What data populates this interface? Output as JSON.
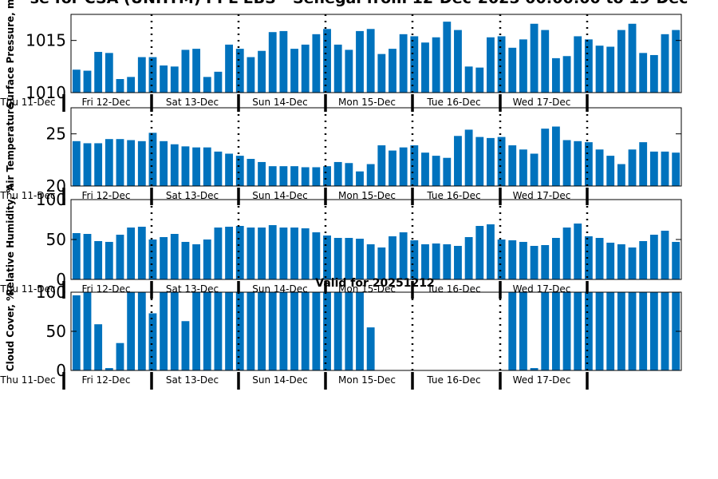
{
  "figure": {
    "title": "se for CSA (UNHTM) PPL EBS  - Senegal from 12-Dec-2025 00:00:00 to 19-Dec",
    "valid_label": "Valid for 20251212",
    "day_labels": [
      "Thu 11-Dec",
      "Fri 12-Dec",
      "Sat 13-Dec",
      "Sun 14-Dec",
      "Mon 15-Dec",
      "Tue 16-Dec",
      "Wed 17-Dec"
    ],
    "bar_color": "#0072BD"
  },
  "chart_data": [
    {
      "type": "bar",
      "ylabel": "Surface Pressure, m",
      "ylim": [
        1010,
        1017.5
      ],
      "yticks": [
        1010,
        1015
      ],
      "grid": false,
      "values": [
        1012.2,
        1012.1,
        1013.9,
        1013.8,
        1011.3,
        1011.5,
        1013.4,
        1013.4,
        1012.6,
        1012.5,
        1014.1,
        1014.2,
        1011.5,
        1012.0,
        1014.6,
        1014.2,
        1013.4,
        1014.0,
        1015.8,
        1015.9,
        1014.2,
        1014.6,
        1015.6,
        1016.1,
        1014.6,
        1014.1,
        1015.9,
        1016.1,
        1013.7,
        1014.2,
        1015.6,
        1015.4,
        1014.8,
        1015.3,
        1016.8,
        1016.0,
        1012.5,
        1012.4,
        1015.3,
        1015.4,
        1014.3,
        1015.1,
        1016.6,
        1016.0,
        1013.3,
        1013.5,
        1015.4,
        1015.1,
        1014.5,
        1014.4,
        1016.0,
        1016.6,
        1013.8,
        1013.6,
        1015.6,
        1016.0
      ]
    },
    {
      "type": "bar",
      "ylabel": "Air Temperature",
      "ylim": [
        20,
        27.5
      ],
      "yticks": [
        20,
        25
      ],
      "grid": false,
      "values": [
        24.3,
        24.1,
        24.1,
        24.5,
        24.5,
        24.4,
        24.3,
        25.1,
        24.3,
        24.0,
        23.8,
        23.7,
        23.7,
        23.3,
        23.1,
        22.9,
        22.6,
        22.3,
        21.9,
        21.9,
        21.9,
        21.8,
        21.8,
        21.9,
        22.3,
        22.2,
        21.4,
        22.1,
        23.9,
        23.4,
        23.7,
        23.9,
        23.2,
        22.9,
        22.7,
        24.8,
        25.4,
        24.7,
        24.6,
        24.7,
        23.9,
        23.5,
        23.1,
        25.5,
        25.7,
        24.4,
        24.3,
        24.2,
        23.5,
        22.9,
        22.1,
        23.5,
        24.2,
        23.3,
        23.3,
        23.2
      ]
    },
    {
      "type": "bar",
      "ylabel": "Relative Humidity, %",
      "ylim": [
        0,
        100
      ],
      "yticks": [
        0,
        50,
        100
      ],
      "grid": false,
      "values": [
        58,
        57,
        48,
        47,
        56,
        65,
        66,
        50,
        53,
        57,
        47,
        44,
        50,
        65,
        66,
        67,
        65,
        65,
        68,
        65,
        65,
        64,
        59,
        55,
        52,
        52,
        51,
        44,
        40,
        54,
        59,
        49,
        44,
        45,
        44,
        42,
        53,
        67,
        69,
        50,
        49,
        47,
        42,
        43,
        52,
        65,
        70,
        54,
        52,
        46,
        44,
        40,
        48,
        56,
        61,
        47
      ]
    },
    {
      "type": "bar",
      "ylabel": "Cloud Cover, %",
      "ylim": [
        0,
        100
      ],
      "yticks": [
        0,
        50,
        100
      ],
      "grid": false,
      "values": [
        96,
        100,
        59,
        3,
        35,
        100,
        100,
        73,
        100,
        100,
        63,
        100,
        100,
        100,
        100,
        100,
        100,
        100,
        100,
        100,
        100,
        100,
        100,
        100,
        100,
        100,
        100,
        55,
        0,
        0,
        0,
        0,
        0,
        0,
        0,
        0,
        0,
        0,
        0,
        0,
        100,
        100,
        3,
        100,
        100,
        100,
        100,
        100,
        100,
        100,
        100,
        100,
        100,
        100,
        100,
        100
      ]
    }
  ]
}
